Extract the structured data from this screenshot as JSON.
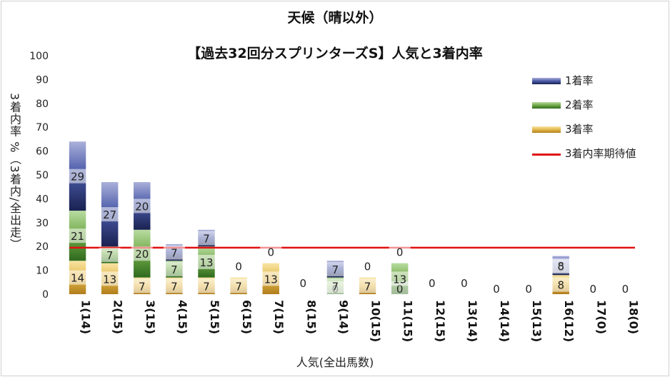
{
  "title": "天候（晴以外）",
  "subtitle": "【過去32回分スプリンターズS】人気と3着内率",
  "ylabel": "3着内率 %（3着内/全出走）",
  "xlabel": "人気(全出馬数)",
  "legend": [
    {
      "name": "1着率",
      "color": "#4a5aa8"
    },
    {
      "name": "2着率",
      "color": "#6fa845"
    },
    {
      "name": "3着率",
      "color": "#d9a93a"
    },
    {
      "name": "3着内率期待値",
      "color": "#e01010"
    }
  ],
  "chart_data": {
    "type": "bar",
    "stacked": true,
    "categories": [
      "1(14)",
      "2(15)",
      "3(15)",
      "4(15)",
      "5(15)",
      "6(15)",
      "7(15)",
      "8(15)",
      "9(14)",
      "10(15)",
      "11(15)",
      "12(15)",
      "13(14)",
      "14(14)",
      "15(13)",
      "16(12)",
      "17(0)",
      "18(0)"
    ],
    "series": [
      {
        "name": "3着率",
        "values": [
          14,
          13,
          7,
          7,
          7,
          7,
          13,
          0,
          0,
          7,
          0,
          0,
          0,
          0,
          0,
          8,
          0,
          0
        ],
        "labels": [
          "14",
          "13",
          "7",
          "7",
          "7",
          "7",
          "13",
          "",
          "0",
          "7",
          "0",
          "",
          "",
          "0",
          "0",
          "8",
          "0",
          "0"
        ]
      },
      {
        "name": "2着率",
        "values": [
          21,
          7,
          20,
          7,
          13,
          0,
          0,
          0,
          7,
          0,
          13,
          0,
          0,
          0,
          0,
          0,
          0,
          0
        ],
        "labels": [
          "21",
          "7",
          "20",
          "7",
          "13",
          "",
          "",
          "",
          "7",
          "",
          "13",
          "",
          "",
          "",
          "",
          "0",
          "",
          ""
        ]
      },
      {
        "name": "1着率",
        "values": [
          29,
          27,
          20,
          7,
          7,
          0,
          0,
          0,
          7,
          0,
          0,
          0,
          0,
          0,
          0,
          8,
          0,
          0
        ],
        "labels": [
          "29",
          "27",
          "20",
          "7",
          "7",
          "0",
          "0",
          "0",
          "7",
          "0",
          "0",
          "0",
          "0",
          "",
          "",
          "8",
          "",
          ""
        ]
      }
    ],
    "expected_line": {
      "name": "3着内率期待値",
      "value": 19.5
    },
    "ylim": [
      0,
      100
    ],
    "yticks": [
      0,
      10,
      20,
      30,
      40,
      50,
      60,
      70,
      80,
      90,
      100
    ],
    "grid": false,
    "legend_position": "right"
  }
}
